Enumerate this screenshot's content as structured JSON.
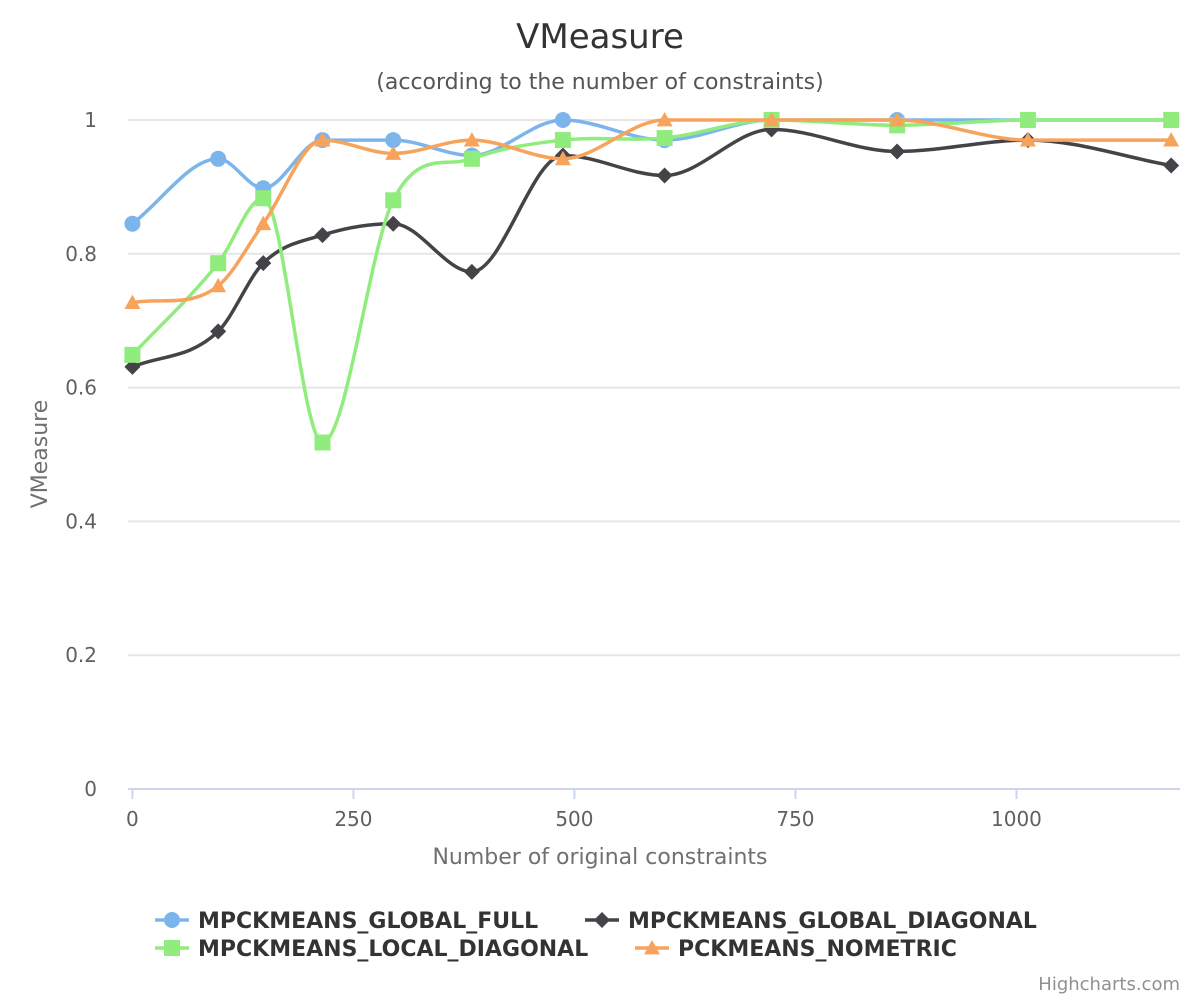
{
  "chart_data": {
    "type": "line",
    "title": "VMeasure",
    "subtitle": "(according to the number of constraints)",
    "xlabel": "Number of original constraints",
    "ylabel": "VMeasure",
    "xlim": [
      -5,
      1185
    ],
    "ylim": [
      0,
      1
    ],
    "x_ticks": [
      0,
      250,
      500,
      750,
      1000
    ],
    "x_tick_labels": [
      "0",
      "250",
      "500",
      "750",
      "1000"
    ],
    "y_ticks": [
      0,
      0.2,
      0.4,
      0.6,
      0.8,
      1
    ],
    "y_tick_labels": [
      "0",
      "0.2",
      "0.4",
      "0.6",
      "0.8",
      "1"
    ],
    "grid": true,
    "legend_position": "bottom",
    "credits": "Highcharts.com",
    "series": [
      {
        "name": "MPCKMEANS_GLOBAL_FULL",
        "color": "#7cb5ec",
        "marker": "circle",
        "x": [
          0,
          97,
          148,
          215,
          295,
          384,
          487,
          602,
          723,
          865,
          1013,
          1175
        ],
        "values": [
          0.845,
          0.942,
          0.898,
          0.97,
          0.97,
          0.947,
          1.0,
          0.97,
          1.0,
          1.0,
          1.0,
          1.0
        ]
      },
      {
        "name": "MPCKMEANS_GLOBAL_DIAGONAL",
        "color": "#434348",
        "marker": "diamond",
        "x": [
          0,
          97,
          148,
          215,
          295,
          384,
          487,
          602,
          723,
          865,
          1013,
          1175
        ],
        "values": [
          0.631,
          0.684,
          0.786,
          0.828,
          0.845,
          0.773,
          0.947,
          0.917,
          0.986,
          0.953,
          0.97,
          0.932
        ]
      },
      {
        "name": "MPCKMEANS_LOCAL_DIAGONAL",
        "color": "#90ed7d",
        "marker": "square",
        "x": [
          0,
          97,
          148,
          215,
          295,
          384,
          487,
          602,
          723,
          865,
          1013,
          1175
        ],
        "values": [
          0.649,
          0.786,
          0.883,
          0.518,
          0.88,
          0.942,
          0.97,
          0.973,
          1.0,
          0.992,
          1.0,
          1.0
        ]
      },
      {
        "name": "PCKMEANS_NOMETRIC",
        "color": "#f7a35c",
        "marker": "triangle",
        "x": [
          0,
          97,
          148,
          215,
          295,
          384,
          487,
          602,
          723,
          865,
          1013,
          1175
        ],
        "values": [
          0.727,
          0.752,
          0.845,
          0.97,
          0.95,
          0.97,
          0.942,
          1.0,
          1.0,
          1.0,
          0.97,
          0.97
        ]
      }
    ]
  }
}
